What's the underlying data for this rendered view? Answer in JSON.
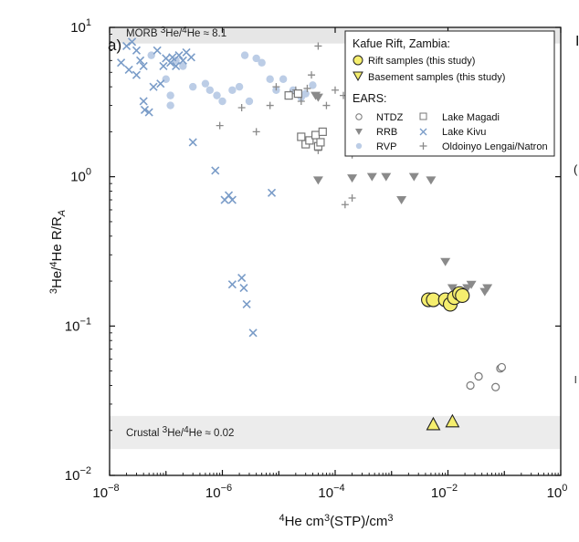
{
  "chart_data": {
    "type": "scatter",
    "panel_label": "a)",
    "xlabel_pre": "4",
    "xlabel_main": "He cm",
    "xlabel_exp": "3",
    "xlabel_end": "(STP)/cm",
    "xlabel_exp2": "3",
    "ylabel_parts": [
      "3",
      "He/",
      "4",
      "He R/R",
      "A"
    ],
    "x_scale": "log",
    "y_scale": "log",
    "xlim": [
      1e-08,
      1
    ],
    "ylim": [
      0.01,
      10
    ],
    "x_ticks": [
      {
        "value": 1e-08,
        "base": "10",
        "exp": "−8"
      },
      {
        "value": 1e-06,
        "base": "10",
        "exp": "−6"
      },
      {
        "value": 0.0001,
        "base": "10",
        "exp": "−4"
      },
      {
        "value": 0.01,
        "base": "10",
        "exp": "−2"
      },
      {
        "value": 1,
        "base": "10",
        "exp": "0"
      }
    ],
    "y_ticks": [
      {
        "value": 0.01,
        "base": "10",
        "exp": "−2"
      },
      {
        "value": 0.1,
        "base": "10",
        "exp": "−1"
      },
      {
        "value": 1,
        "base": "10",
        "exp": "0"
      },
      {
        "value": 10,
        "base": "10",
        "exp": "1"
      }
    ],
    "right_edge_letters": [
      "I",
      "(",
      "l"
    ],
    "bands": [
      {
        "name": "morb",
        "y_low": 7.8,
        "y_high": 10,
        "label_pre": "MORB ",
        "label_sup": "3",
        "label_mid": "He/",
        "label_sup2": "4",
        "label_end": "He ≈ 8.1",
        "color": "#e6e6e6"
      },
      {
        "name": "crustal",
        "y_low": 0.015,
        "y_high": 0.025,
        "label_pre": "Crustal ",
        "label_sup": "3",
        "label_mid": "He/",
        "label_sup2": "4",
        "label_end": "He ≈ 0.02",
        "color": "#ececec"
      }
    ],
    "legend": {
      "title": "Kafue Rift, Zambia:",
      "rift_label": "Rift samples (this study)",
      "basement_label": "Basement samples (this study)",
      "ears_title": "EARS:",
      "ntdz_label": "NTDZ",
      "rrb_label": "RRB",
      "rvp_label": "RVP",
      "magadi_label": "Lake Magadi",
      "kivu_label": "Lake Kivu",
      "lengai_label": "Oldoinyo Lengai/Natron"
    },
    "colors": {
      "yellow": "#f5ee6e",
      "kivu": "#7a9cc8",
      "rvp": "#bccde6",
      "rrb": "#8a8a8a",
      "ntdz": "#777777",
      "lengai": "#8a8a8a",
      "magadi": "#777777"
    },
    "series": [
      {
        "name": "Rift samples (this study)",
        "marker": "circle-yellow",
        "points": [
          [
            0.0045,
            0.15
          ],
          [
            0.0055,
            0.15
          ],
          [
            0.009,
            0.15
          ],
          [
            0.011,
            0.14
          ],
          [
            0.013,
            0.155
          ],
          [
            0.016,
            0.165
          ],
          [
            0.018,
            0.16
          ]
        ]
      },
      {
        "name": "Basement samples (this study)",
        "marker": "triangle-up-yellow",
        "points": [
          [
            0.0055,
            0.022
          ],
          [
            0.012,
            0.023
          ]
        ]
      },
      {
        "name": "NTDZ",
        "marker": "open-circle",
        "points": [
          [
            0.025,
            0.04
          ],
          [
            0.035,
            0.046
          ],
          [
            0.07,
            0.039
          ],
          [
            0.085,
            0.052
          ],
          [
            0.09,
            0.053
          ]
        ]
      },
      {
        "name": "RRB",
        "marker": "triangle-down",
        "points": [
          [
            5e-05,
            0.95
          ],
          [
            0.0002,
            0.98
          ],
          [
            0.00045,
            1.0
          ],
          [
            0.0008,
            1.0
          ],
          [
            0.0015,
            0.7
          ],
          [
            0.0025,
            1.0
          ],
          [
            0.005,
            0.95
          ],
          [
            0.009,
            0.27
          ],
          [
            0.012,
            0.18
          ],
          [
            0.018,
            0.17
          ],
          [
            0.022,
            0.18
          ],
          [
            0.026,
            0.19
          ],
          [
            0.045,
            0.17
          ],
          [
            0.05,
            0.18
          ],
          [
            4.5e-05,
            3.5
          ],
          [
            5e-05,
            3.4
          ]
        ]
      },
      {
        "name": "RVP",
        "marker": "filled-circle",
        "points": [
          [
            5.5e-08,
            6.5
          ],
          [
            1e-07,
            4.5
          ],
          [
            1.2e-07,
            3.5
          ],
          [
            1.2e-07,
            3.0
          ],
          [
            1.5e-07,
            6.0
          ],
          [
            2e-07,
            5.5
          ],
          [
            3e-07,
            4.0
          ],
          [
            5e-07,
            4.2
          ],
          [
            6e-07,
            3.8
          ],
          [
            8e-07,
            3.5
          ],
          [
            1e-06,
            3.2
          ],
          [
            1.5e-06,
            3.8
          ],
          [
            2e-06,
            4.0
          ],
          [
            2.5e-06,
            6.5
          ],
          [
            3e-06,
            3.2
          ],
          [
            4e-06,
            6.2
          ],
          [
            5e-06,
            5.8
          ],
          [
            7e-06,
            4.5
          ],
          [
            9e-06,
            3.8
          ],
          [
            1.2e-05,
            4.5
          ],
          [
            1.8e-05,
            3.8
          ],
          [
            2.5e-05,
            3.4
          ],
          [
            3e-05,
            3.6
          ],
          [
            4e-05,
            4.1
          ]
        ]
      },
      {
        "name": "Lake Magadi",
        "marker": "open-square",
        "points": [
          [
            1.5e-05,
            3.5
          ],
          [
            2.2e-05,
            3.6
          ],
          [
            2.5e-05,
            1.85
          ],
          [
            3e-05,
            1.65
          ],
          [
            3.5e-05,
            1.75
          ],
          [
            4.5e-05,
            1.9
          ],
          [
            5e-05,
            1.6
          ],
          [
            6e-05,
            2.0
          ],
          [
            5.5e-05,
            1.7
          ]
        ]
      },
      {
        "name": "Lake Kivu",
        "marker": "x",
        "points": [
          [
            1.6e-08,
            5.8
          ],
          [
            2e-08,
            7.5
          ],
          [
            2.2e-08,
            5.2
          ],
          [
            2.5e-08,
            8.0
          ],
          [
            3e-08,
            7.0
          ],
          [
            3e-08,
            4.8
          ],
          [
            3.5e-08,
            6.0
          ],
          [
            4e-08,
            5.5
          ],
          [
            4e-08,
            3.2
          ],
          [
            4.2e-08,
            2.8
          ],
          [
            5e-08,
            2.7
          ],
          [
            6e-08,
            4.0
          ],
          [
            7e-08,
            7.0
          ],
          [
            8e-08,
            4.2
          ],
          [
            9e-08,
            5.5
          ],
          [
            1e-07,
            6.2
          ],
          [
            1.2e-07,
            5.8
          ],
          [
            1.3e-07,
            6.3
          ],
          [
            1.5e-07,
            5.5
          ],
          [
            1.7e-07,
            6.5
          ],
          [
            2e-07,
            6.0
          ],
          [
            2.3e-07,
            6.8
          ],
          [
            2.8e-07,
            6.3
          ],
          [
            3e-07,
            1.7
          ],
          [
            7.5e-07,
            1.1
          ],
          [
            1.1e-06,
            0.7
          ],
          [
            1.3e-06,
            0.75
          ],
          [
            1.5e-06,
            0.7
          ],
          [
            1.5e-06,
            0.19
          ],
          [
            2.2e-06,
            0.21
          ],
          [
            2.4e-06,
            0.18
          ],
          [
            2.7e-06,
            0.14
          ],
          [
            3.5e-06,
            0.09
          ],
          [
            7.5e-06,
            0.78
          ]
        ]
      },
      {
        "name": "Oldoinyo Lengai/Natron",
        "marker": "plus",
        "points": [
          [
            5e-05,
            7.5
          ],
          [
            9e-07,
            2.2
          ],
          [
            2.2e-06,
            2.9
          ],
          [
            4e-06,
            2.0
          ],
          [
            7e-06,
            3.0
          ],
          [
            9e-06,
            4.0
          ],
          [
            1.6e-05,
            3.6
          ],
          [
            2e-05,
            3.8
          ],
          [
            2.5e-05,
            3.2
          ],
          [
            3.2e-05,
            3.9
          ],
          [
            3.8e-05,
            4.8
          ],
          [
            5e-05,
            1.5
          ],
          [
            7e-05,
            3.0
          ],
          [
            0.0001,
            3.8
          ],
          [
            0.00014,
            3.5
          ],
          [
            0.00015,
            0.65
          ],
          [
            0.0002,
            0.72
          ],
          [
            0.0002,
            1.4
          ]
        ]
      }
    ]
  }
}
